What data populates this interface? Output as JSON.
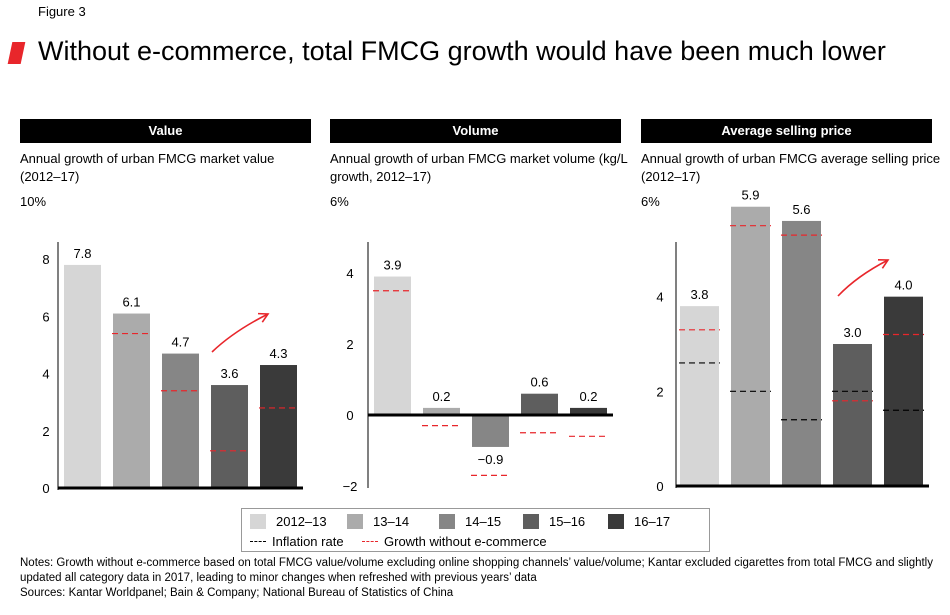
{
  "figure_label": "Figure 3",
  "title": "Without e-commerce, total FMCG growth would have been much lower",
  "colors": {
    "accent": "#e8262b",
    "series": [
      "#d6d6d6",
      "#ababab",
      "#868686",
      "#5e5e5e",
      "#3a3a3a"
    ],
    "inflation": "#000000",
    "growth_without_ecommerce": "#e8262b"
  },
  "legend": {
    "series": [
      "2012–13",
      "13–14",
      "14–15",
      "15–16",
      "16–17"
    ],
    "inflation": "Inflation rate",
    "without": "Growth without e-commerce"
  },
  "chart_data": [
    {
      "type": "bar",
      "header": "Value",
      "subtitle": "Annual growth of urban FMCG market value (2012–17)",
      "unit_label": "10%",
      "categories": [
        "2012–13",
        "13–14",
        "14–15",
        "15–16",
        "16–17"
      ],
      "values": [
        7.8,
        6.1,
        4.7,
        3.6,
        4.3
      ],
      "value_labels": [
        "7.8",
        "6.1",
        "4.7",
        "3.6",
        "4.3"
      ],
      "growth_without_ecommerce": [
        null,
        5.4,
        3.4,
        1.3,
        2.8
      ],
      "inflation_rate": [
        null,
        null,
        null,
        null,
        null
      ],
      "yticks": [
        0,
        2,
        4,
        6,
        8
      ],
      "ylim": [
        0,
        10
      ],
      "trend_arrow": true
    },
    {
      "type": "bar",
      "header": "Volume",
      "subtitle": "Annual growth of urban FMCG market volume (kg/L growth, 2012–17)",
      "unit_label": "6%",
      "categories": [
        "2012–13",
        "13–14",
        "14–15",
        "15–16",
        "16–17"
      ],
      "values": [
        3.9,
        0.2,
        -0.9,
        0.6,
        0.2
      ],
      "value_labels": [
        "3.9",
        "0.2",
        "−0.9",
        "0.6",
        "0.2"
      ],
      "growth_without_ecommerce": [
        3.5,
        -0.3,
        -1.7,
        -0.5,
        -0.6
      ],
      "inflation_rate": [
        null,
        null,
        null,
        null,
        null
      ],
      "yticks": [
        -2,
        0,
        2,
        4
      ],
      "ytick_labels": [
        "−2",
        "0",
        "2",
        "4"
      ],
      "ylim": [
        -2,
        6
      ],
      "trend_arrow": false
    },
    {
      "type": "bar",
      "header": "Average selling price",
      "subtitle": "Annual growth of urban FMCG average selling price (2012–17)",
      "unit_label": "6%",
      "categories": [
        "2012–13",
        "13–14",
        "14–15",
        "15–16",
        "16–17"
      ],
      "values": [
        3.8,
        5.9,
        5.6,
        3.0,
        4.0
      ],
      "value_labels": [
        "3.8",
        "5.9",
        "5.6",
        "3.0",
        "4.0"
      ],
      "growth_without_ecommerce": [
        3.3,
        5.5,
        5.3,
        1.8,
        3.2
      ],
      "inflation_rate": [
        2.6,
        2.0,
        1.4,
        2.0,
        1.6
      ],
      "yticks": [
        0,
        2,
        4
      ],
      "ylim": [
        0,
        6
      ],
      "trend_arrow": true
    }
  ],
  "notes": [
    "Notes: Growth without e-commerce based on total FMCG value/volume excluding online shopping channels’ value/volume; Kantar excluded cigarettes from total FMCG and slightly updated all category data in 2017, leading to minor changes when refreshed with previous years’ data",
    "Sources: Kantar Worldpanel; Bain & Company; National Bureau of Statistics of China"
  ]
}
